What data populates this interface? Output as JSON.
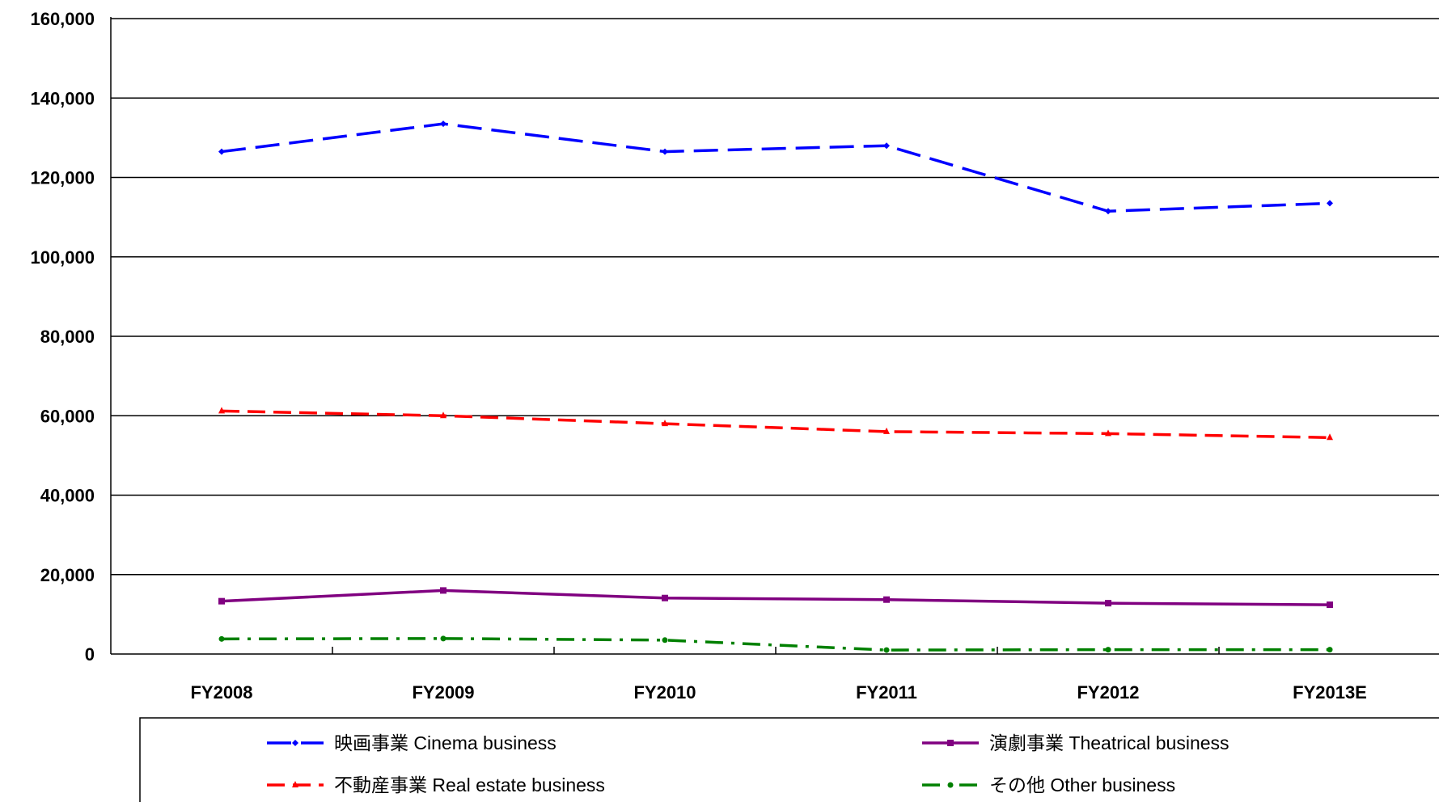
{
  "chart_data": {
    "type": "line",
    "categories": [
      "FY2008",
      "FY2009",
      "FY2010",
      "FY2011",
      "FY2012",
      "FY2013E"
    ],
    "ylim": [
      0,
      160000
    ],
    "yticks": [
      0,
      20000,
      40000,
      60000,
      80000,
      100000,
      120000,
      140000,
      160000
    ],
    "ytick_labels": [
      "0",
      "20,000",
      "40,000",
      "60,000",
      "80,000",
      "100,000",
      "120,000",
      "140,000",
      "160,000"
    ],
    "grid": true,
    "legend_position": "bottom",
    "series": [
      {
        "name": "映画事業 Cinema business",
        "color": "#0000ff",
        "dash": "long-dash",
        "marker": "diamond",
        "values": [
          126500,
          133500,
          126500,
          128000,
          111500,
          113500
        ]
      },
      {
        "name": "演劇事業 Theatrical business",
        "color": "#800080",
        "dash": "solid",
        "marker": "square",
        "values": [
          13300,
          16000,
          14100,
          13700,
          12800,
          12400
        ]
      },
      {
        "name": "不動産事業 Real estate business",
        "color": "#ff0000",
        "dash": "dash",
        "marker": "triangle",
        "values": [
          61200,
          60000,
          58000,
          56000,
          55500,
          54500
        ]
      },
      {
        "name": "その他 Other business",
        "color": "#008000",
        "dash": "dash-dot",
        "marker": "circle",
        "values": [
          3800,
          3900,
          3500,
          1000,
          1100,
          1100
        ]
      }
    ]
  }
}
